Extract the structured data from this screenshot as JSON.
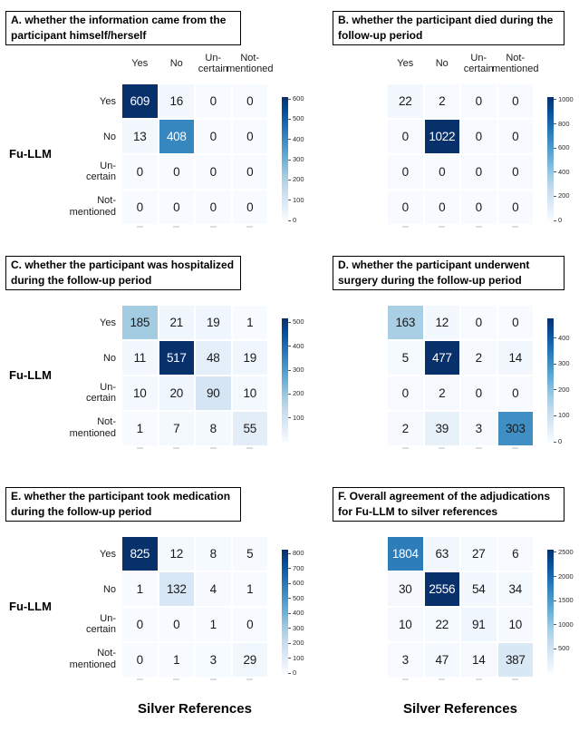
{
  "figure": {
    "y_axis_label": "Fu-LLM",
    "x_axis_label": "Silver References",
    "category_display_lines": [
      [
        "Yes"
      ],
      [
        "No"
      ],
      [
        "Un-",
        "certain"
      ],
      [
        "Not-",
        "mentioned"
      ]
    ],
    "colormap": {
      "name": "Blues",
      "stops": [
        "#f7fbff",
        "#deebf7",
        "#c6dbef",
        "#9ecae1",
        "#6baed6",
        "#4292c6",
        "#2171b5",
        "#08519c",
        "#08306b"
      ]
    },
    "cell_text_dark": "#1a1a1a",
    "cell_text_light": "#ffffff",
    "white_text_threshold": 0.66
  },
  "chart_data": [
    {
      "type": "heatmap",
      "panel": "A",
      "title": "A. whether the information came from the participant himself/herself",
      "x_categories": [
        "Yes",
        "No",
        "Un-certain",
        "Not-mentioned"
      ],
      "y_categories": [
        "Yes",
        "No",
        "Un-certain",
        "Not-mentioned"
      ],
      "values": [
        [
          609,
          16,
          0,
          0
        ],
        [
          13,
          408,
          0,
          0
        ],
        [
          0,
          0,
          0,
          0
        ],
        [
          0,
          0,
          0,
          0
        ]
      ],
      "vmax": 609,
      "colorbar_ticks": [
        600,
        500,
        400,
        300,
        200,
        100,
        0
      ]
    },
    {
      "type": "heatmap",
      "panel": "B",
      "title": "B. whether the participant died during the follow-up period",
      "x_categories": [
        "Yes",
        "No",
        "Un-certain",
        "Not-mentioned"
      ],
      "y_categories": [
        "Yes",
        "No",
        "Un-certain",
        "Not-mentioned"
      ],
      "values": [
        [
          22,
          2,
          0,
          0
        ],
        [
          0,
          1022,
          0,
          0
        ],
        [
          0,
          0,
          0,
          0
        ],
        [
          0,
          0,
          0,
          0
        ]
      ],
      "vmax": 1022,
      "colorbar_ticks": [
        1000,
        800,
        600,
        400,
        200,
        0
      ]
    },
    {
      "type": "heatmap",
      "panel": "C",
      "title": "C. whether the participant was hospitalized during the follow-up period",
      "x_categories": [
        "Yes",
        "No",
        "Un-certain",
        "Not-mentioned"
      ],
      "y_categories": [
        "Yes",
        "No",
        "Un-certain",
        "Not-mentioned"
      ],
      "values": [
        [
          185,
          21,
          19,
          1
        ],
        [
          11,
          517,
          48,
          19
        ],
        [
          10,
          20,
          90,
          10
        ],
        [
          1,
          7,
          8,
          55
        ]
      ],
      "vmax": 517,
      "colorbar_ticks": [
        500,
        400,
        300,
        200,
        100
      ]
    },
    {
      "type": "heatmap",
      "panel": "D",
      "title": "D. whether the participant underwent surgery during the follow-up period",
      "x_categories": [
        "Yes",
        "No",
        "Un-certain",
        "Not-mentioned"
      ],
      "y_categories": [
        "Yes",
        "No",
        "Un-certain",
        "Not-mentioned"
      ],
      "values": [
        [
          163,
          12,
          0,
          0
        ],
        [
          5,
          477,
          2,
          14
        ],
        [
          0,
          2,
          0,
          0
        ],
        [
          2,
          39,
          3,
          303
        ]
      ],
      "vmax": 477,
      "colorbar_ticks": [
        400,
        300,
        200,
        100,
        0
      ]
    },
    {
      "type": "heatmap",
      "panel": "E",
      "title": "E. whether the participant took medication during the follow-up period",
      "x_categories": [
        "Yes",
        "No",
        "Un-certain",
        "Not-mentioned"
      ],
      "y_categories": [
        "Yes",
        "No",
        "Un-certain",
        "Not-mentioned"
      ],
      "values": [
        [
          825,
          12,
          8,
          5
        ],
        [
          1,
          132,
          4,
          1
        ],
        [
          0,
          0,
          1,
          0
        ],
        [
          0,
          1,
          3,
          29
        ]
      ],
      "vmax": 825,
      "colorbar_ticks": [
        800,
        700,
        600,
        500,
        400,
        300,
        200,
        100,
        0
      ]
    },
    {
      "type": "heatmap",
      "panel": "F",
      "title": "F. Overall agreement of the adjudications for Fu-LLM to silver references",
      "x_categories": [
        "Yes",
        "No",
        "Un-certain",
        "Not-mentioned"
      ],
      "y_categories": [
        "Yes",
        "No",
        "Un-certain",
        "Not-mentioned"
      ],
      "values": [
        [
          1804,
          63,
          27,
          6
        ],
        [
          30,
          2556,
          54,
          34
        ],
        [
          10,
          22,
          91,
          10
        ],
        [
          3,
          47,
          14,
          387
        ]
      ],
      "vmax": 2556,
      "colorbar_ticks": [
        2500,
        2000,
        1500,
        1000,
        500
      ]
    }
  ]
}
